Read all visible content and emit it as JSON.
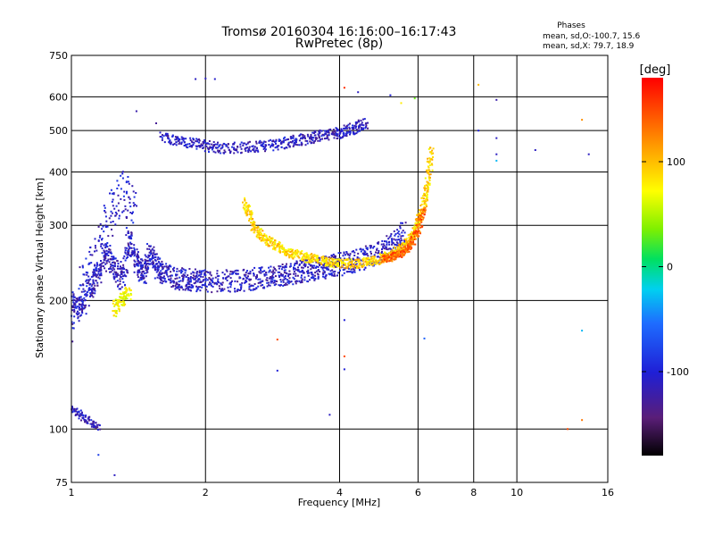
{
  "chart_data": {
    "type": "scatter",
    "title": "Tromsø 20160304 16:16:00–16:17:43",
    "subtitle": "RwPretec (8p)",
    "xlabel": "Frequency [MHz]",
    "ylabel": "Stationary phase Virtual Height [km]",
    "x_scale": "log",
    "y_scale": "log",
    "xlim": [
      1,
      16
    ],
    "ylim": [
      75,
      750
    ],
    "x_ticks": [
      1,
      2,
      4,
      6,
      8,
      10,
      16
    ],
    "x_tick_labels": [
      "1",
      "2",
      "4",
      "6",
      "8",
      "10",
      "16"
    ],
    "y_ticks": [
      75,
      100,
      200,
      300,
      400,
      500,
      600,
      750
    ],
    "y_tick_labels": [
      "75",
      "100",
      "200",
      "300",
      "400",
      "500",
      "600",
      "750"
    ],
    "grid": true,
    "phases": {
      "title": "Phases",
      "o_line": "mean, sd,O:-100.7, 15.6",
      "x_line": "mean, sd,X:  79.7, 18.9"
    },
    "colorbar": {
      "label": "[deg]",
      "range": [
        -180,
        180
      ],
      "ticks": [
        100,
        0,
        -100
      ],
      "tick_labels": [
        "100",
        "0",
        "-100"
      ]
    },
    "traces": [
      {
        "x": [
          1.0,
          1.05,
          1.1,
          1.15,
          1.2,
          1.25,
          1.3,
          1.35,
          1.4,
          1.45,
          1.5,
          1.55,
          1.6,
          1.7,
          1.8,
          1.9,
          2.0,
          2.2,
          2.4,
          2.6,
          2.8,
          3.0,
          3.2,
          3.4,
          3.6,
          3.8,
          4.0,
          4.3,
          4.6,
          5.0,
          5.3,
          5.6
        ],
        "y": [
          200,
          190,
          215,
          230,
          260,
          240,
          225,
          280,
          245,
          230,
          260,
          240,
          232,
          226,
          224,
          223,
          222,
          222,
          223,
          225,
          228,
          230,
          233,
          235,
          238,
          240,
          243,
          247,
          252,
          262,
          272,
          290
        ],
        "phase": -110,
        "spread": 0.06,
        "n": 5
      },
      {
        "x": [
          1.0,
          1.1,
          1.2,
          1.3,
          1.4
        ],
        "y": [
          180,
          240,
          300,
          360,
          330
        ],
        "phase": -105,
        "spread": 0.12,
        "n": 4
      },
      {
        "x": [
          1.25,
          1.3,
          1.35
        ],
        "y": [
          190,
          200,
          210
        ],
        "phase": 70,
        "spread": 0.04,
        "n": 5
      },
      {
        "x": [
          1.0,
          1.05,
          1.1,
          1.15
        ],
        "y": [
          112,
          108,
          104,
          101
        ],
        "phase": -110,
        "spread": 0.02,
        "n": 3
      },
      {
        "x": [
          1.6,
          1.8,
          2.0,
          2.2,
          2.5,
          2.8,
          3.1,
          3.4,
          3.7,
          4.0,
          4.3,
          4.6
        ],
        "y": [
          480,
          470,
          460,
          455,
          457,
          462,
          470,
          478,
          488,
          495,
          505,
          520
        ],
        "phase": -110,
        "spread": 0.03,
        "n": 5
      },
      {
        "x": [
          2.45,
          2.55,
          2.7,
          2.9,
          3.1,
          3.4,
          3.7,
          4.0,
          4.4,
          4.8,
          5.2,
          5.6,
          5.9,
          6.1,
          6.3,
          6.45
        ],
        "y": [
          340,
          300,
          280,
          268,
          258,
          252,
          247,
          244,
          244,
          248,
          255,
          268,
          290,
          320,
          370,
          460
        ],
        "phase": 90,
        "spread": 0.025,
        "n": 6
      },
      {
        "x": [
          5.0,
          5.2,
          5.4,
          5.6,
          5.8,
          6.0,
          6.2
        ],
        "y": [
          250,
          252,
          256,
          262,
          272,
          292,
          330
        ],
        "phase": 140,
        "spread": 0.02,
        "n": 4
      }
    ],
    "scatter": [
      {
        "x": 1.4,
        "y": 555,
        "phase": -120
      },
      {
        "x": 1.55,
        "y": 520,
        "phase": -130
      },
      {
        "x": 1.9,
        "y": 660,
        "phase": -110
      },
      {
        "x": 2.0,
        "y": 662,
        "phase": -110
      },
      {
        "x": 2.1,
        "y": 660,
        "phase": -105
      },
      {
        "x": 2.9,
        "y": 162,
        "phase": 150
      },
      {
        "x": 2.9,
        "y": 137,
        "phase": -100
      },
      {
        "x": 3.8,
        "y": 108,
        "phase": -110
      },
      {
        "x": 4.1,
        "y": 630,
        "phase": 160
      },
      {
        "x": 4.1,
        "y": 180,
        "phase": -100
      },
      {
        "x": 4.1,
        "y": 148,
        "phase": 150
      },
      {
        "x": 4.1,
        "y": 138,
        "phase": -100
      },
      {
        "x": 4.4,
        "y": 615,
        "phase": -110
      },
      {
        "x": 5.2,
        "y": 605,
        "phase": -100
      },
      {
        "x": 5.5,
        "y": 580,
        "phase": 80
      },
      {
        "x": 5.9,
        "y": 595,
        "phase": 30
      },
      {
        "x": 6.2,
        "y": 163,
        "phase": -60
      },
      {
        "x": 8.2,
        "y": 640,
        "phase": 100
      },
      {
        "x": 8.2,
        "y": 500,
        "phase": -100
      },
      {
        "x": 9.0,
        "y": 590,
        "phase": -120
      },
      {
        "x": 9.0,
        "y": 480,
        "phase": -110
      },
      {
        "x": 9.0,
        "y": 440,
        "phase": -110
      },
      {
        "x": 9.0,
        "y": 425,
        "phase": -30
      },
      {
        "x": 11.0,
        "y": 450,
        "phase": -110
      },
      {
        "x": 13.0,
        "y": 100,
        "phase": 150
      },
      {
        "x": 14.0,
        "y": 530,
        "phase": 120
      },
      {
        "x": 14.0,
        "y": 170,
        "phase": -30
      },
      {
        "x": 14.0,
        "y": 105,
        "phase": 130
      },
      {
        "x": 14.5,
        "y": 440,
        "phase": -110
      },
      {
        "x": 1.15,
        "y": 87,
        "phase": -80
      },
      {
        "x": 1.25,
        "y": 78,
        "phase": -110
      }
    ]
  }
}
